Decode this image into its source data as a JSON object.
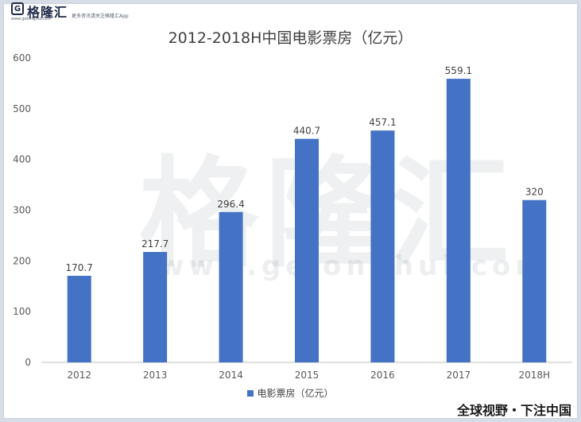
{
  "header": {
    "logo_mark": "G",
    "logo_name": "格隆汇",
    "logo_url": "www.gelonghui.com",
    "tagline": "更多资讯请关注格隆汇App"
  },
  "watermark": {
    "brand": "格隆汇",
    "url": "www.gelonghui.com"
  },
  "footer": {
    "slogan": "全球视野・下注中国"
  },
  "chart_data": {
    "type": "bar",
    "title": "2012-2018H中国电影票房（亿元）",
    "categories": [
      "2012",
      "2013",
      "2014",
      "2015",
      "2016",
      "2017",
      "2018H"
    ],
    "series": [
      {
        "name": "电影票房（亿元）",
        "values": [
          170.7,
          217.7,
          296.4,
          440.7,
          457.1,
          559.1,
          320
        ],
        "color": "#4472c4"
      }
    ],
    "data_labels": [
      "170.7",
      "217.7",
      "296.4",
      "440.7",
      "457.1",
      "559.1",
      "320"
    ],
    "ylim": [
      0,
      600
    ],
    "yticks": [
      0,
      100,
      200,
      300,
      400,
      500,
      600
    ],
    "grid": false,
    "legend": "bottom"
  }
}
